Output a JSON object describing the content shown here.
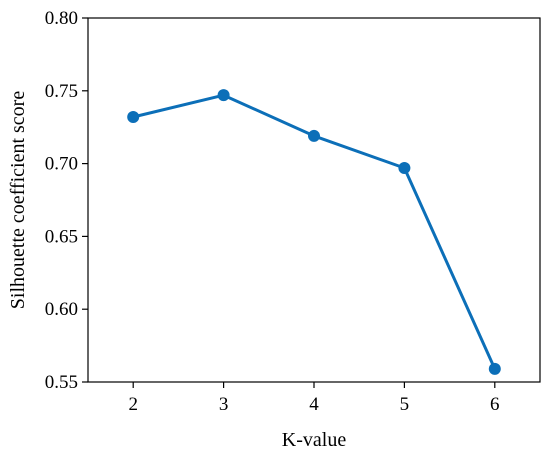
{
  "chart_data": {
    "type": "line",
    "xlabel": "K-value",
    "ylabel": "Silhouette coefficient score",
    "x": [
      2,
      3,
      4,
      5,
      6
    ],
    "series": [
      {
        "values": [
          0.732,
          0.747,
          0.719,
          0.697,
          0.559
        ]
      }
    ],
    "xticks": [
      "2",
      "3",
      "4",
      "5",
      "6"
    ],
    "yticks": [
      "0.55",
      "0.60",
      "0.65",
      "0.70",
      "0.75",
      "0.80"
    ],
    "xlim": [
      1.5,
      6.5
    ],
    "ylim": [
      0.55,
      0.8
    ],
    "grid": false,
    "legend": "none",
    "colors": {
      "series": "#0c6fb8",
      "axes": "#000000"
    }
  }
}
